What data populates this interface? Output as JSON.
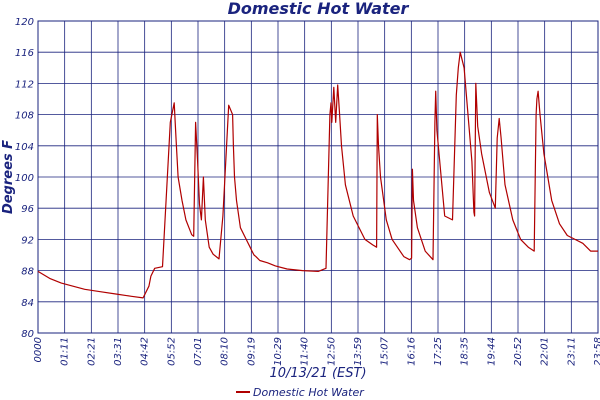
{
  "chart_data": {
    "type": "line",
    "title": "Domestic Hot Water",
    "xlabel": "10/13/21 (EST)",
    "ylabel": "Degrees F",
    "ylim": [
      80,
      120
    ],
    "yticks": [
      80,
      84,
      88,
      92,
      96,
      100,
      104,
      108,
      112,
      116,
      120
    ],
    "xlim": [
      0,
      1439
    ],
    "xtick_labels": [
      "0000",
      "01:11",
      "02:21",
      "03:31",
      "04:42",
      "05:52",
      "07:01",
      "08:10",
      "09:19",
      "10:29",
      "11:40",
      "12:50",
      "13:59",
      "15:07",
      "16:16",
      "17:25",
      "18:35",
      "19:44",
      "20:52",
      "22:01",
      "23:11",
      "23:58"
    ],
    "grid": true,
    "legend": "bottom-center",
    "series": [
      {
        "name": "Domestic Hot Water",
        "color": "#b00000",
        "x": [
          0,
          30,
          60,
          90,
          120,
          160,
          200,
          240,
          270,
          285,
          290,
          300,
          320,
          340,
          350,
          355,
          360,
          370,
          380,
          395,
          400,
          405,
          410,
          415,
          420,
          425,
          430,
          440,
          450,
          465,
          475,
          490,
          500,
          502,
          505,
          510,
          520,
          535,
          545,
          550,
          555,
          560,
          570,
          590,
          610,
          640,
          680,
          720,
          740,
          750,
          753,
          755,
          760,
          765,
          770,
          775,
          780,
          790,
          810,
          840,
          860,
          870,
          872,
          875,
          880,
          895,
          910,
          940,
          955,
          960,
          962,
          965,
          975,
          995,
          1015,
          1020,
          1022,
          1025,
          1045,
          1065,
          1075,
          1080,
          1085,
          1095,
          1115,
          1120,
          1122,
          1125,
          1130,
          1140,
          1160,
          1175,
          1180,
          1185,
          1190,
          1200,
          1220,
          1240,
          1260,
          1275,
          1280,
          1282,
          1285,
          1290,
          1300,
          1320,
          1340,
          1360,
          1380,
          1400,
          1420,
          1439
        ],
        "y": [
          87.9,
          87.0,
          86.4,
          86.0,
          85.6,
          85.3,
          85.0,
          84.7,
          84.5,
          86.0,
          87.3,
          88.3,
          88.5,
          107.0,
          109.5,
          104.5,
          100.0,
          97.0,
          94.5,
          92.6,
          92.4,
          107.0,
          102.0,
          96.5,
          94.5,
          100.0,
          94.5,
          91.0,
          90.1,
          89.5,
          95.0,
          109.2,
          108.0,
          104.0,
          100.0,
          97.0,
          93.5,
          92.0,
          91.0,
          90.5,
          90.0,
          89.8,
          89.3,
          89.0,
          88.6,
          88.2,
          88.0,
          87.9,
          88.3,
          108.0,
          109.5,
          107.0,
          111.5,
          107.0,
          111.8,
          108.0,
          104.0,
          99.0,
          95.0,
          92.0,
          91.3,
          91.0,
          108.0,
          104.0,
          100.0,
          94.5,
          92.0,
          89.8,
          89.4,
          89.6,
          101.0,
          97.0,
          93.5,
          90.5,
          89.4,
          107.0,
          111.0,
          106.0,
          95.0,
          94.5,
          110.5,
          114.0,
          116.0,
          114.0,
          102.0,
          95.5,
          95.0,
          112.0,
          106.5,
          103.0,
          98.0,
          96.0,
          105.0,
          107.5,
          105.0,
          99.0,
          94.5,
          92.0,
          91.0,
          90.5,
          108.0,
          110.0,
          111.0,
          108.0,
          103.0,
          97.0,
          94.0,
          92.5,
          92.0,
          91.5,
          90.5,
          90.5
        ]
      }
    ]
  }
}
